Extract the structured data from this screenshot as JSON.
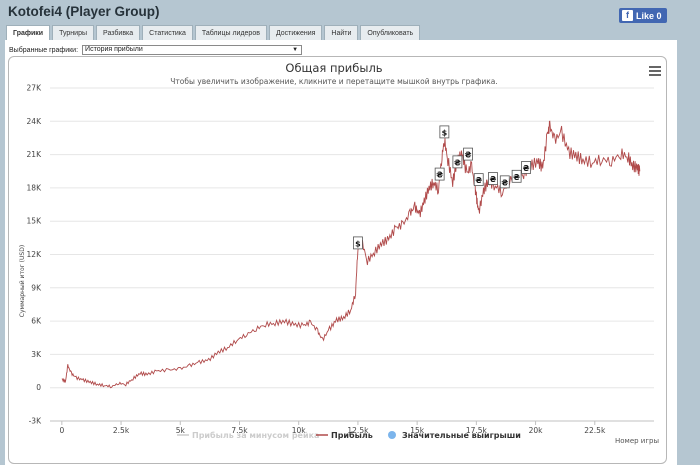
{
  "app": {
    "title": "Kotofei4 (Player Group)",
    "like_label": "Like 0",
    "like_icon": "f"
  },
  "tabs": [
    "Графики",
    "Турниры",
    "Разбивка",
    "Статистика",
    "Таблицы лидеров",
    "Достижения",
    "Найти",
    "Опубликовать"
  ],
  "active_tab": 0,
  "graph_select": {
    "label": "Выбранные графики:",
    "value": "История прибыли"
  },
  "chart_data": {
    "type": "line",
    "title": "Общая прибыль",
    "subtitle": "Чтобы увеличить изображение, кликните и перетащите мышкой внутрь графика.",
    "xlabel": "Номер игры",
    "ylabel": "Суммарный итог (USD)",
    "xlim": [
      -500,
      25000
    ],
    "ylim": [
      -3000,
      27000
    ],
    "x_ticks": [
      0,
      2500,
      5000,
      7500,
      10000,
      12500,
      15000,
      17500,
      20000,
      22500
    ],
    "x_tick_labels": [
      "0",
      "2.5k",
      "5k",
      "7.5k",
      "10k",
      "12.5k",
      "15k",
      "17.5k",
      "20k",
      "22.5k"
    ],
    "y_ticks": [
      -3000,
      0,
      3000,
      6000,
      9000,
      12000,
      15000,
      18000,
      21000,
      24000,
      27000
    ],
    "y_tick_labels": [
      "-3K",
      "0",
      "3K",
      "6K",
      "9K",
      "12K",
      "15K",
      "18K",
      "21K",
      "24K",
      "27K"
    ],
    "grid": "horizontal",
    "legend_position": "bottom",
    "legend": [
      {
        "name": "Прибыль за минусом рейка",
        "color": "#cccccc",
        "style": "line",
        "enabled": false
      },
      {
        "name": "Прибыль",
        "color": "#b04a4a",
        "style": "line",
        "enabled": true
      },
      {
        "name": "Значительные выигрыши",
        "color": "#7cb5ec",
        "style": "dot",
        "enabled": true
      }
    ],
    "series": [
      {
        "name": "Прибыль",
        "color": "#b04a4a",
        "points": [
          [
            0,
            800
          ],
          [
            150,
            500
          ],
          [
            250,
            2000
          ],
          [
            400,
            1300
          ],
          [
            600,
            900
          ],
          [
            900,
            700
          ],
          [
            1200,
            500
          ],
          [
            1500,
            300
          ],
          [
            1800,
            200
          ],
          [
            2100,
            100
          ],
          [
            2400,
            400
          ],
          [
            2700,
            300
          ],
          [
            3000,
            800
          ],
          [
            3300,
            1300
          ],
          [
            3600,
            1200
          ],
          [
            4000,
            1500
          ],
          [
            4500,
            1600
          ],
          [
            5000,
            1700
          ],
          [
            5400,
            2000
          ],
          [
            5800,
            2300
          ],
          [
            6200,
            2500
          ],
          [
            6600,
            3200
          ],
          [
            7000,
            3600
          ],
          [
            7400,
            4300
          ],
          [
            7800,
            4800
          ],
          [
            8200,
            5300
          ],
          [
            8600,
            5700
          ],
          [
            9000,
            5800
          ],
          [
            9400,
            6000
          ],
          [
            9800,
            5700
          ],
          [
            10200,
            5600
          ],
          [
            10500,
            5900
          ],
          [
            10800,
            5100
          ],
          [
            11000,
            4300
          ],
          [
            11300,
            5300
          ],
          [
            11600,
            6100
          ],
          [
            11900,
            6300
          ],
          [
            12200,
            7000
          ],
          [
            12400,
            8500
          ],
          [
            12500,
            12600
          ],
          [
            12650,
            13300
          ],
          [
            12900,
            11400
          ],
          [
            13200,
            12200
          ],
          [
            13500,
            13000
          ],
          [
            13800,
            13400
          ],
          [
            14100,
            14400
          ],
          [
            14400,
            14700
          ],
          [
            14700,
            15700
          ],
          [
            14900,
            16300
          ],
          [
            15100,
            15600
          ],
          [
            15300,
            16800
          ],
          [
            15500,
            18000
          ],
          [
            15700,
            18500
          ],
          [
            15900,
            17800
          ],
          [
            16050,
            20900
          ],
          [
            16150,
            22300
          ],
          [
            16300,
            20500
          ],
          [
            16500,
            18500
          ],
          [
            16700,
            20500
          ],
          [
            16900,
            21000
          ],
          [
            17100,
            19300
          ],
          [
            17300,
            20000
          ],
          [
            17450,
            17800
          ],
          [
            17500,
            17200
          ],
          [
            17600,
            15800
          ],
          [
            17800,
            17700
          ],
          [
            18000,
            18600
          ],
          [
            18300,
            18200
          ],
          [
            18600,
            17600
          ],
          [
            18900,
            18700
          ],
          [
            19200,
            19100
          ],
          [
            19500,
            19300
          ],
          [
            19800,
            20000
          ],
          [
            20100,
            20400
          ],
          [
            20300,
            19800
          ],
          [
            20500,
            22800
          ],
          [
            20600,
            23600
          ],
          [
            20800,
            22300
          ],
          [
            21100,
            23000
          ],
          [
            21400,
            21200
          ],
          [
            21700,
            20900
          ],
          [
            22000,
            20500
          ],
          [
            22400,
            20300
          ],
          [
            22800,
            20600
          ],
          [
            23200,
            20400
          ],
          [
            23600,
            21100
          ],
          [
            23900,
            20800
          ],
          [
            24100,
            20000
          ],
          [
            24300,
            19800
          ],
          [
            24400,
            19500
          ]
        ]
      }
    ],
    "markers": [
      {
        "x": 12500,
        "y": 13000,
        "label": "$"
      },
      {
        "x": 15950,
        "y": 19200,
        "label": "₴"
      },
      {
        "x": 16150,
        "y": 23000,
        "label": "$"
      },
      {
        "x": 16700,
        "y": 20300,
        "label": "₴"
      },
      {
        "x": 17150,
        "y": 21000,
        "label": "₴"
      },
      {
        "x": 17600,
        "y": 18700,
        "label": "₴"
      },
      {
        "x": 18200,
        "y": 18800,
        "label": "₴"
      },
      {
        "x": 18700,
        "y": 18500,
        "label": "₴"
      },
      {
        "x": 19200,
        "y": 19000,
        "label": "₴"
      },
      {
        "x": 19600,
        "y": 19800,
        "label": "₴"
      }
    ]
  }
}
